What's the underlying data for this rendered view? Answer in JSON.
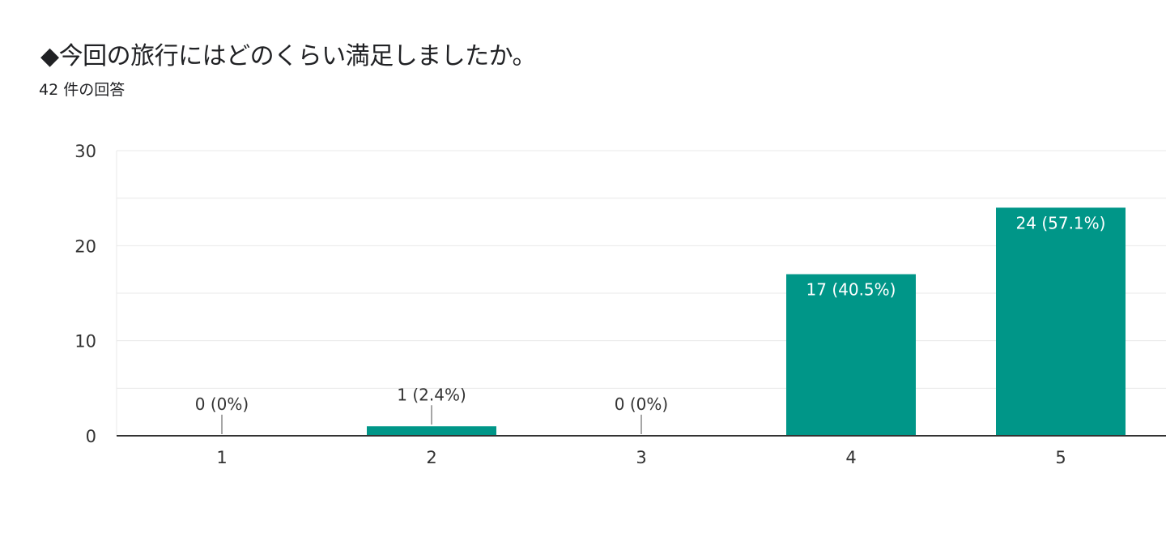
{
  "question": {
    "title": "◆今回の旅行にはどのくらい満足しましたか。",
    "response_count": "42 件の回答"
  },
  "colors": {
    "bar": "#009688",
    "grid": "#e8e8e8",
    "axis": "#333333",
    "text": "#333333",
    "inside_label": "#ffffff"
  },
  "chart_data": {
    "type": "bar",
    "categories": [
      "1",
      "2",
      "3",
      "4",
      "5"
    ],
    "values": [
      0,
      1,
      0,
      17,
      24
    ],
    "data_labels": [
      "0 (0%)",
      "1 (2.4%)",
      "0 (0%)",
      "17 (40.5%)",
      "24 (57.1%)"
    ],
    "ylim": [
      0,
      30
    ],
    "yticks": [
      0,
      10,
      20,
      30
    ],
    "grid": true,
    "xlabel": "",
    "ylabel": ""
  }
}
